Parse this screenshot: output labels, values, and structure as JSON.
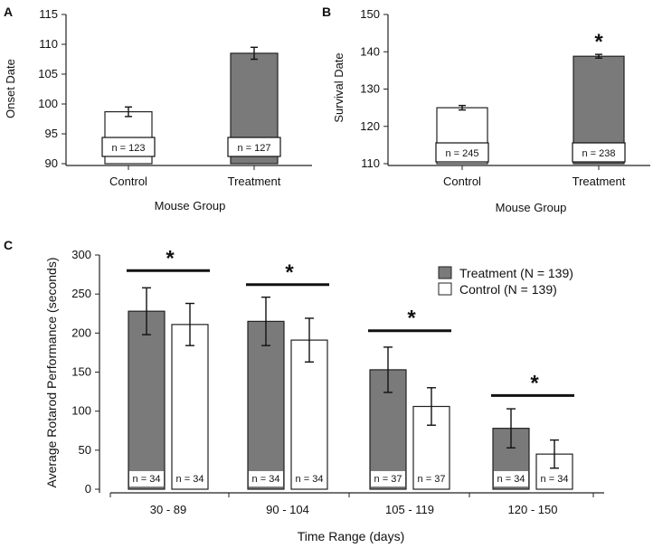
{
  "colors": {
    "treatment": "#7a7a7a",
    "control": "#ffffff",
    "axis": "#222222"
  },
  "chart_data": [
    {
      "panel": "A",
      "type": "bar",
      "title": "",
      "xlabel": "Mouse Group",
      "ylabel": "Onset Date",
      "ylim": [
        90,
        115
      ],
      "yticks": [
        90,
        95,
        100,
        105,
        110,
        115
      ],
      "categories": [
        "Control",
        "Treatment"
      ],
      "values": [
        98.7,
        108.5
      ],
      "errors": [
        0.8,
        1.0
      ],
      "fills": [
        "control",
        "treatment"
      ],
      "n_labels": [
        "n = 123",
        "n = 127"
      ],
      "significance": [
        "",
        ""
      ]
    },
    {
      "panel": "B",
      "type": "bar",
      "title": "",
      "xlabel": "Mouse Group",
      "ylabel": "Survival Date",
      "ylim": [
        110,
        150
      ],
      "yticks": [
        110,
        120,
        130,
        140,
        150
      ],
      "categories": [
        "Control",
        "Treatment"
      ],
      "values": [
        125.0,
        138.8
      ],
      "errors": [
        0.6,
        0.5
      ],
      "fills": [
        "control",
        "treatment"
      ],
      "n_labels": [
        "n = 245",
        "n = 238"
      ],
      "significance": [
        "",
        "*"
      ]
    },
    {
      "panel": "C",
      "type": "bar",
      "title": "",
      "xlabel": "Time Range (days)",
      "ylabel": "Average Rotarod Performance (seconds)",
      "ylim": [
        0,
        300
      ],
      "yticks": [
        0,
        50,
        100,
        150,
        200,
        250,
        300
      ],
      "categories": [
        "30 - 89",
        "90 - 104",
        "105 - 119",
        "120 - 150"
      ],
      "series": [
        {
          "name": "Treatment (N = 139)",
          "fill": "treatment",
          "values": [
            228,
            215,
            153,
            78
          ],
          "errors": [
            30,
            31,
            29,
            25
          ],
          "n_labels": [
            "n = 34",
            "n = 34",
            "n = 37",
            "n = 34"
          ]
        },
        {
          "name": "Control (N = 139)",
          "fill": "control",
          "values": [
            211,
            191,
            106,
            45
          ],
          "errors": [
            27,
            28,
            24,
            18
          ],
          "n_labels": [
            "n = 34",
            "n = 34",
            "n = 37",
            "n = 34"
          ]
        }
      ],
      "significance": [
        "*",
        "*",
        "*",
        "*"
      ],
      "significance_bar_values": [
        280,
        262,
        203,
        120
      ],
      "legend": "top-right"
    }
  ]
}
